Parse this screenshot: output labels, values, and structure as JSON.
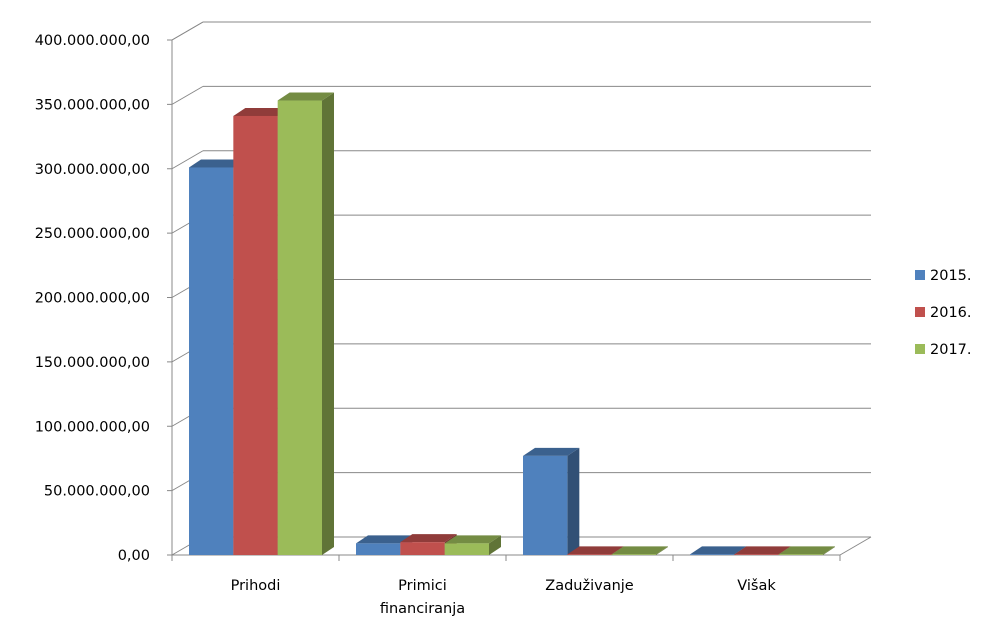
{
  "chart_data": {
    "type": "bar",
    "categories": [
      "Prihodi",
      "Primici financiranja",
      "Zaduživanje",
      "Višak"
    ],
    "category_lines": [
      [
        "Prihodi"
      ],
      [
        "Primici",
        "financiranja"
      ],
      [
        "Zaduživanje"
      ],
      [
        "Višak"
      ]
    ],
    "series": [
      {
        "name": "2015.",
        "values": [
          301000000,
          9000000,
          77000000,
          500000
        ],
        "color": "#4F81BD"
      },
      {
        "name": "2016.",
        "values": [
          341000000,
          10000000,
          500000,
          500000
        ],
        "color": "#C0504D"
      },
      {
        "name": "2017.",
        "values": [
          353000000,
          9000000,
          500000,
          500000
        ],
        "color": "#9BBB59"
      }
    ],
    "ylim": [
      0,
      400000000
    ],
    "yticks": [
      0,
      50000000,
      100000000,
      150000000,
      200000000,
      250000000,
      300000000,
      350000000,
      400000000
    ],
    "ytick_labels": [
      "0,00",
      "50.000.000,00",
      "100.000.000,00",
      "150.000.000,00",
      "200.000.000,00",
      "250.000.000,00",
      "300.000.000,00",
      "350.000.000,00",
      "400.000.000,00"
    ],
    "title": "",
    "xlabel": "",
    "ylabel": "",
    "grid": true,
    "legend_position": "right",
    "style": "3d-clustered-column"
  }
}
